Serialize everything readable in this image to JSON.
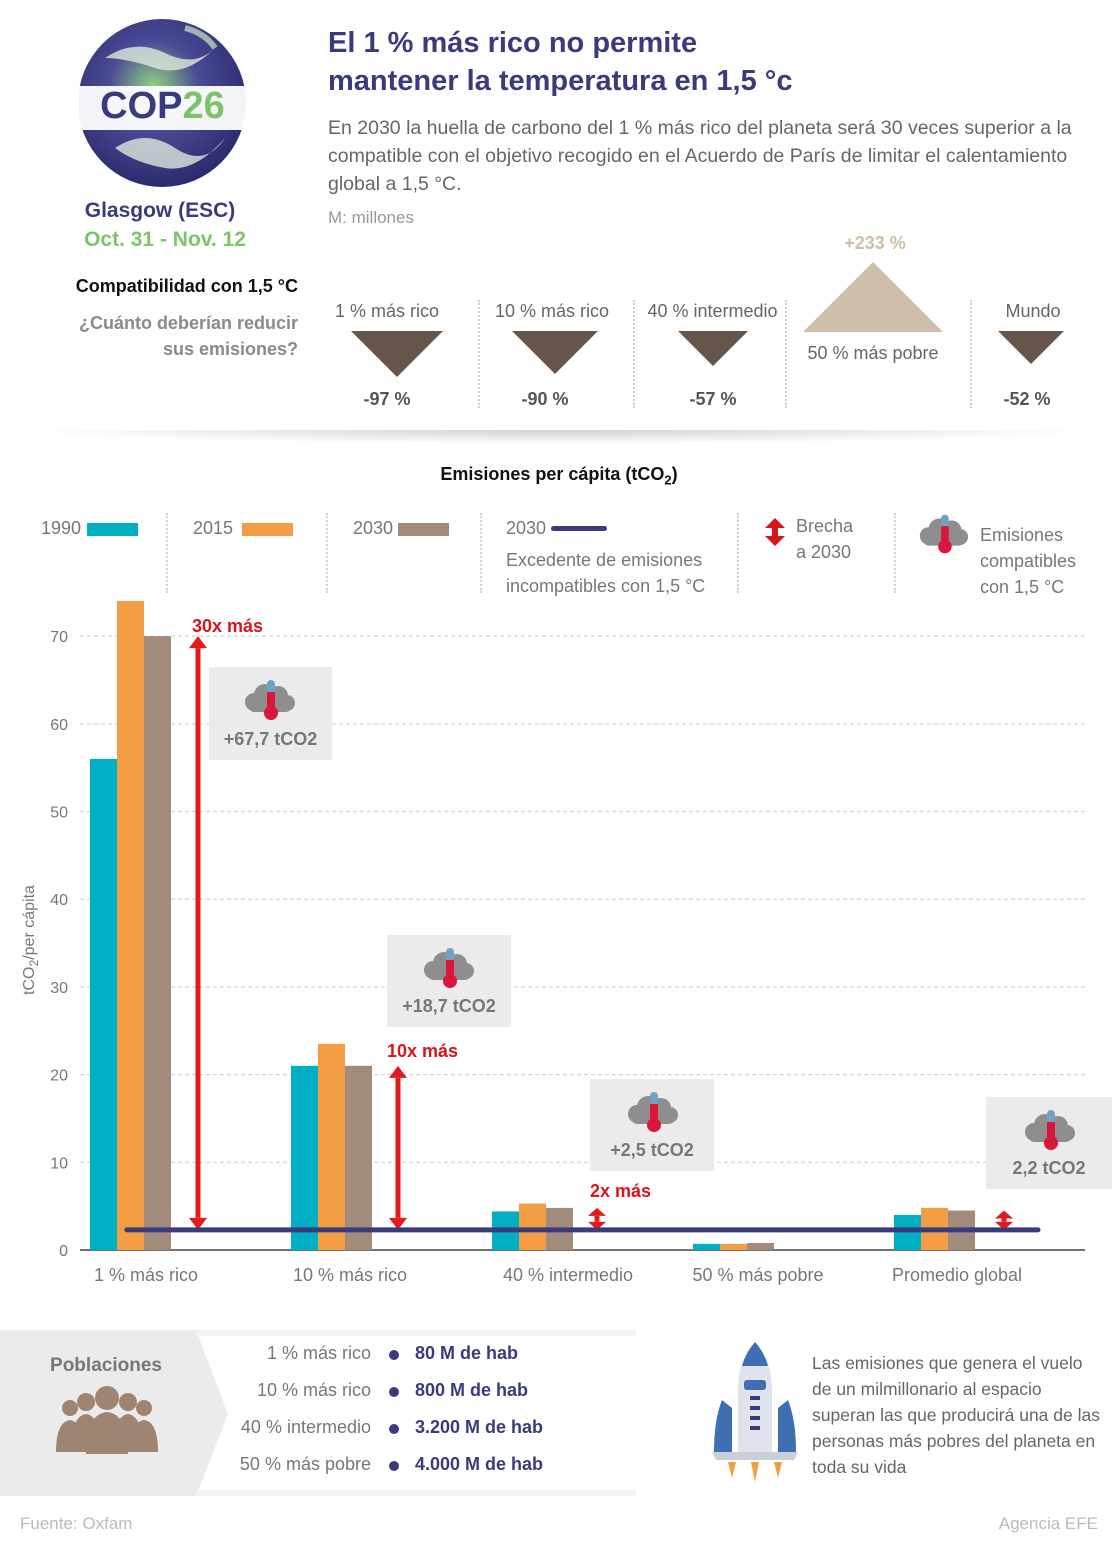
{
  "header": {
    "title_line1": "El 1 % más rico no permite",
    "title_line2": "mantener la temperatura en 1,5 °c",
    "subtitle": "En 2030 la huella de carbono del 1 % más rico del planeta será 30 veces superior a la compatible con el objetivo recogido en el Acuerdo de París de limitar el calentamiento global a 1,5 °C.",
    "units_note": "M: millones"
  },
  "cop_badge": {
    "logo_prefix": "COP",
    "logo_number": "26",
    "location": "Glasgow (ESC)",
    "dates": "Oct. 31 - Nov. 12"
  },
  "compatibility": {
    "heading": "Compatibilidad con 1,5 °C",
    "question_line1": "¿Cuánto deberían reducir",
    "question_line2": "sus emisiones?",
    "groups": [
      {
        "label": "1 % más rico",
        "value": "-97 %",
        "direction": "down"
      },
      {
        "label": "10 % más rico",
        "value": "-90 %",
        "direction": "down"
      },
      {
        "label": "40 % intermedio",
        "value": "-57 %",
        "direction": "down"
      },
      {
        "label": "50 % más pobre",
        "value": "+233 %",
        "direction": "up"
      },
      {
        "label": "Mundo",
        "value": "-52 %",
        "direction": "down"
      }
    ],
    "colors": {
      "down": "#65554a",
      "up": "#cdbfa8"
    }
  },
  "legend": {
    "y1990": "1990",
    "y2015": "2015",
    "y2030": "2030",
    "line_year": "2030",
    "line_desc_1": "Excedente de emisiones",
    "line_desc_2": "incompatibles con 1,5 °C",
    "gap_1": "Brecha",
    "gap_2": "a 2030",
    "compat_1": "Emisiones",
    "compat_2": "compatibles",
    "compat_3": "con 1,5 °C"
  },
  "chart_data": {
    "type": "bar",
    "title": "Emisiones per cápita (tCO2)",
    "ylabel": "tCO2/per cápita",
    "ylim": [
      0,
      75
    ],
    "yticks": [
      0,
      10,
      20,
      30,
      40,
      50,
      60,
      70
    ],
    "categories": [
      "1 % más rico",
      "10 % más rico",
      "40 % intermedio",
      "50 % más pobre",
      "Promedio global"
    ],
    "series": [
      {
        "name": "1990",
        "color": "#00afc4",
        "values": [
          56,
          21,
          4.4,
          0.7,
          4.0
        ]
      },
      {
        "name": "2015",
        "color": "#f39e45",
        "values": [
          74,
          23.5,
          5.3,
          0.7,
          4.8
        ]
      },
      {
        "name": "2030",
        "color": "#a38b7c",
        "values": [
          70,
          21,
          4.8,
          0.8,
          4.5
        ]
      }
    ],
    "compatible_line": {
      "value": 2.3,
      "color": "#3a3b7e"
    },
    "gaps": [
      {
        "category": "1 % más rico",
        "label": "30x más",
        "annotation": "+67,7 tCO2"
      },
      {
        "category": "10 % más rico",
        "label": "10x más",
        "annotation": "+18,7 tCO2"
      },
      {
        "category": "40 % intermedio",
        "label": "2x más",
        "annotation": "+2,5 tCO2"
      },
      {
        "category": "Promedio global",
        "label": "",
        "annotation": "2,2 tCO2"
      }
    ],
    "grid": true
  },
  "populations": {
    "title": "Poblaciones",
    "rows": [
      {
        "label": "1 % más rico",
        "value": "80 M de hab"
      },
      {
        "label": "10 % más rico",
        "value": "800 M de hab"
      },
      {
        "label": "40 % intermedio",
        "value": "3.200 M de hab"
      },
      {
        "label": "50 % más pobre",
        "value": "4.000 M de hab"
      }
    ]
  },
  "note": "Las emisiones que genera el vuelo de un milmillonario al espacio superan las que producirá una de las personas más pobres del planeta en toda su vida",
  "footer": {
    "source": "Fuente: Oxfam",
    "agency": "Agencia EFE"
  }
}
